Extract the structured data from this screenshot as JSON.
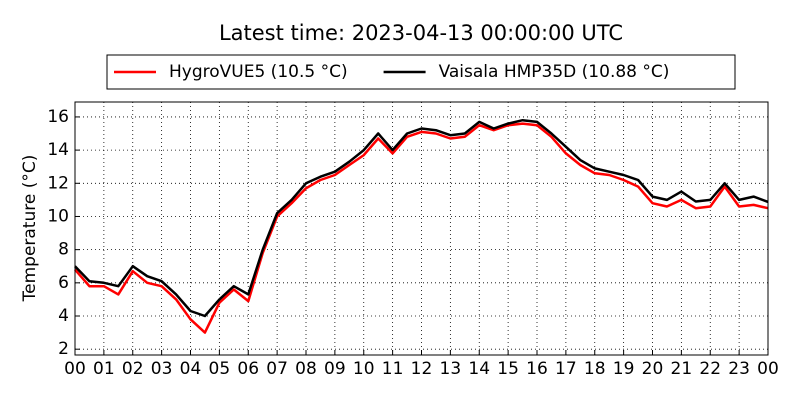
{
  "chart_data": {
    "type": "line",
    "title": "Latest time: 2023-04-13 00:00:00 UTC",
    "y_label": "Temperature (°C)",
    "x": [
      0,
      0.5,
      1,
      1.5,
      2,
      2.5,
      3,
      3.5,
      4,
      4.5,
      5,
      5.5,
      6,
      6.5,
      7,
      7.5,
      8,
      8.5,
      9,
      9.5,
      10,
      10.5,
      11,
      11.5,
      12,
      12.5,
      13,
      13.5,
      14,
      14.5,
      15,
      15.5,
      16,
      16.5,
      17,
      17.5,
      18,
      18.5,
      19,
      19.5,
      20,
      20.5,
      21,
      21.5,
      22,
      22.5,
      23,
      23.5,
      24
    ],
    "series": [
      {
        "name": "HygroVUE5 (10.5 °C)",
        "color": "#ff0000",
        "values": [
          6.8,
          5.8,
          5.8,
          5.3,
          6.7,
          6.0,
          5.8,
          5.0,
          3.8,
          3.0,
          4.8,
          5.6,
          4.9,
          7.8,
          10.0,
          10.8,
          11.7,
          12.2,
          12.5,
          13.1,
          13.7,
          14.7,
          13.8,
          14.8,
          15.1,
          15.0,
          14.7,
          14.8,
          15.5,
          15.2,
          15.5,
          15.6,
          15.5,
          14.8,
          13.8,
          13.1,
          12.6,
          12.5,
          12.2,
          11.8,
          10.8,
          10.6,
          11.0,
          10.5,
          10.6,
          11.8,
          10.6,
          10.7,
          10.5
        ]
      },
      {
        "name": "Vaisala HMP35D (10.88 °C)",
        "color": "#000000",
        "values": [
          7.0,
          6.1,
          6.0,
          5.8,
          7.0,
          6.4,
          6.1,
          5.3,
          4.3,
          4.0,
          5.0,
          5.8,
          5.3,
          8.0,
          10.2,
          11.0,
          12.0,
          12.4,
          12.7,
          13.3,
          14.0,
          15.0,
          14.0,
          15.0,
          15.3,
          15.2,
          14.9,
          15.0,
          15.7,
          15.3,
          15.6,
          15.8,
          15.7,
          15.0,
          14.2,
          13.4,
          12.9,
          12.7,
          12.5,
          12.2,
          11.2,
          11.0,
          11.5,
          10.9,
          11.0,
          12.0,
          11.0,
          11.2,
          10.88
        ]
      }
    ],
    "xlim": [
      0,
      24
    ],
    "xticks": [
      {
        "value": 0,
        "label": "00"
      },
      {
        "value": 1,
        "label": "01"
      },
      {
        "value": 2,
        "label": "02"
      },
      {
        "value": 3,
        "label": "03"
      },
      {
        "value": 4,
        "label": "04"
      },
      {
        "value": 5,
        "label": "05"
      },
      {
        "value": 6,
        "label": "06"
      },
      {
        "value": 7,
        "label": "07"
      },
      {
        "value": 8,
        "label": "08"
      },
      {
        "value": 9,
        "label": "09"
      },
      {
        "value": 10,
        "label": "10"
      },
      {
        "value": 11,
        "label": "11"
      },
      {
        "value": 12,
        "label": "12"
      },
      {
        "value": 13,
        "label": "13"
      },
      {
        "value": 14,
        "label": "14"
      },
      {
        "value": 15,
        "label": "15"
      },
      {
        "value": 16,
        "label": "16"
      },
      {
        "value": 17,
        "label": "17"
      },
      {
        "value": 18,
        "label": "18"
      },
      {
        "value": 19,
        "label": "19"
      },
      {
        "value": 20,
        "label": "20"
      },
      {
        "value": 21,
        "label": "21"
      },
      {
        "value": 22,
        "label": "22"
      },
      {
        "value": 23,
        "label": "23"
      },
      {
        "value": 24,
        "label": "00"
      }
    ],
    "ylim": [
      1.65,
      16.9
    ],
    "yticks": [
      2,
      4,
      6,
      8,
      10,
      12,
      14,
      16
    ],
    "grid": true,
    "legend": "top"
  }
}
